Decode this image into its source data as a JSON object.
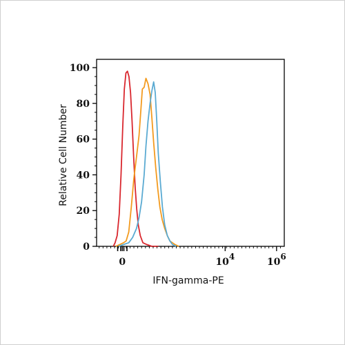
{
  "chart_data": {
    "type": "line",
    "title": "",
    "xlabel": "IFN-gamma-PE",
    "ylabel": "Relative Cell Number",
    "x_scale": "biexponential",
    "xlim": [
      -1,
      6.3
    ],
    "ylim": [
      0,
      100
    ],
    "grid": false,
    "legend": "none",
    "x_tick_labels": [
      {
        "base": "0",
        "exp": ""
      },
      {
        "base": "10",
        "exp": "4"
      },
      {
        "base": "10",
        "exp": "6"
      }
    ],
    "y_ticks": [
      0,
      20,
      40,
      60,
      80,
      100
    ],
    "series": [
      {
        "color": "#d9262d",
        "x": [
          -0.35,
          -0.28,
          -0.2,
          -0.12,
          -0.05,
          0.02,
          0.08,
          0.14,
          0.2,
          0.26,
          0.32,
          0.38,
          0.44,
          0.5,
          0.56,
          0.62,
          0.7,
          0.8,
          0.95,
          1.15,
          1.4
        ],
        "y": [
          0,
          2,
          6,
          18,
          40,
          68,
          88,
          97,
          98,
          95,
          86,
          70,
          50,
          33,
          21,
          12,
          6,
          2,
          1,
          0,
          0
        ]
      },
      {
        "color": "#f39a1e",
        "x": [
          -0.25,
          -0.1,
          0.05,
          0.15,
          0.25,
          0.35,
          0.45,
          0.55,
          0.65,
          0.72,
          0.78,
          0.85,
          0.92,
          1.0,
          1.08,
          1.15,
          1.22,
          1.3,
          1.38,
          1.46,
          1.55,
          1.65,
          1.75,
          1.85,
          1.95,
          2.05,
          2.2
        ],
        "y": [
          0,
          1,
          2,
          3,
          8,
          22,
          38,
          50,
          62,
          76,
          88,
          89,
          94,
          91,
          85,
          72,
          58,
          44,
          32,
          22,
          15,
          10,
          6,
          3,
          2,
          1,
          0
        ]
      },
      {
        "color": "#5aaad2",
        "x": [
          -0.15,
          0.05,
          0.25,
          0.4,
          0.55,
          0.65,
          0.75,
          0.85,
          0.92,
          1.0,
          1.08,
          1.15,
          1.22,
          1.28,
          1.34,
          1.4,
          1.48,
          1.56,
          1.65,
          1.75,
          1.85,
          1.95,
          2.1
        ],
        "y": [
          0,
          1,
          2,
          5,
          10,
          16,
          25,
          40,
          56,
          70,
          80,
          87,
          92,
          86,
          70,
          52,
          36,
          22,
          12,
          6,
          3,
          1,
          0
        ]
      }
    ]
  }
}
